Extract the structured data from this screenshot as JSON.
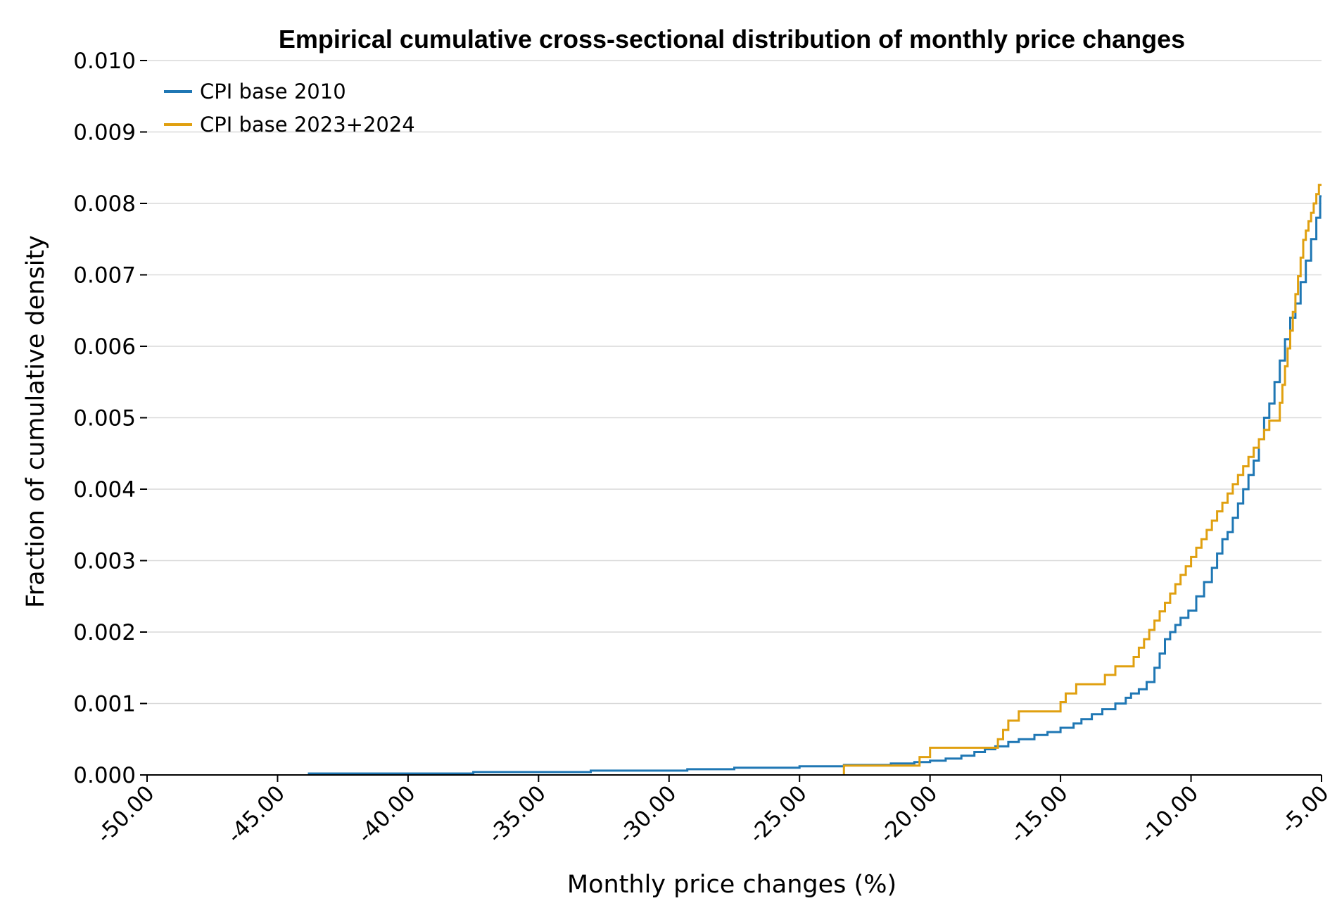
{
  "chart_data": {
    "type": "line",
    "step": true,
    "title": "Empirical cumulative cross-sectional distribution of monthly price changes",
    "xlabel": "Monthly price changes (%)",
    "ylabel": "Fraction of cumulative density",
    "xlim": [
      -50,
      -5
    ],
    "ylim": [
      0,
      0.01
    ],
    "x_ticks": [
      -50,
      -45,
      -40,
      -35,
      -30,
      -25,
      -20,
      -15,
      -10,
      -5
    ],
    "x_tick_labels": [
      "-50.00",
      "-45.00",
      "-40.00",
      "-35.00",
      "-30.00",
      "-25.00",
      "-20.00",
      "-15.00",
      "-10.00",
      "-5.00"
    ],
    "y_ticks": [
      0,
      0.001,
      0.002,
      0.003,
      0.004,
      0.005,
      0.006,
      0.007,
      0.008,
      0.009,
      0.01
    ],
    "y_tick_labels": [
      "0.000",
      "0.001",
      "0.002",
      "0.003",
      "0.004",
      "0.005",
      "0.006",
      "0.007",
      "0.008",
      "0.009",
      "0.010"
    ],
    "grid": true,
    "legend_position": "top-left",
    "series": [
      {
        "name": "CPI base 2010",
        "color": "#1f77b4",
        "x": [
          -43.8,
          -37.5,
          -33.0,
          -29.3,
          -27.5,
          -25.0,
          -23.3,
          -21.5,
          -20.6,
          -20.0,
          -19.4,
          -18.8,
          -18.3,
          -17.9,
          -17.5,
          -17.0,
          -16.6,
          -16.0,
          -15.5,
          -15.0,
          -14.5,
          -14.2,
          -13.8,
          -13.4,
          -12.9,
          -12.5,
          -12.3,
          -12.0,
          -11.7,
          -11.4,
          -11.2,
          -11.0,
          -10.8,
          -10.6,
          -10.4,
          -10.1,
          -9.8,
          -9.5,
          -9.2,
          -9.0,
          -8.8,
          -8.6,
          -8.4,
          -8.2,
          -8.0,
          -7.8,
          -7.6,
          -7.4,
          -7.2,
          -7.0,
          -6.8,
          -6.6,
          -6.4,
          -6.2,
          -6.0,
          -5.8,
          -5.6,
          -5.4,
          -5.2,
          -5.05
        ],
        "y": [
          2e-05,
          4e-05,
          6e-05,
          8e-05,
          0.0001,
          0.00012,
          0.00014,
          0.00016,
          0.00018,
          0.0002,
          0.00023,
          0.00027,
          0.00032,
          0.00036,
          0.0004,
          0.00046,
          0.0005,
          0.00056,
          0.0006,
          0.00066,
          0.00072,
          0.00078,
          0.00085,
          0.00092,
          0.001,
          0.00108,
          0.00114,
          0.0012,
          0.0013,
          0.0015,
          0.0017,
          0.0019,
          0.002,
          0.0021,
          0.0022,
          0.0023,
          0.0025,
          0.0027,
          0.0029,
          0.0031,
          0.0033,
          0.0034,
          0.0036,
          0.0038,
          0.004,
          0.0042,
          0.0044,
          0.0047,
          0.005,
          0.0052,
          0.0055,
          0.0058,
          0.0061,
          0.0064,
          0.0066,
          0.0069,
          0.0072,
          0.0075,
          0.0078,
          0.0081
        ]
      },
      {
        "name": "CPI base 2023+2024",
        "color": "#e0a010",
        "x": [
          -23.3,
          -20.4,
          -20.0,
          -17.4,
          -17.2,
          -17.0,
          -16.6,
          -15.0,
          -14.8,
          -14.4,
          -13.3,
          -12.9,
          -12.2,
          -12.0,
          -11.8,
          -11.6,
          -11.4,
          -11.2,
          -11.0,
          -10.8,
          -10.6,
          -10.4,
          -10.2,
          -10.0,
          -9.8,
          -9.6,
          -9.4,
          -9.2,
          -9.0,
          -8.8,
          -8.6,
          -8.4,
          -8.2,
          -8.0,
          -7.8,
          -7.6,
          -7.4,
          -7.2,
          -7.0,
          -6.6,
          -6.5,
          -6.4,
          -6.3,
          -6.2,
          -6.1,
          -6.0,
          -5.9,
          -5.8,
          -5.7,
          -5.6,
          -5.5,
          -5.4,
          -5.3,
          -5.2,
          -5.1
        ],
        "y": [
          0.00013,
          0.00025,
          0.00038,
          0.0005,
          0.00063,
          0.00076,
          0.00089,
          0.00102,
          0.00114,
          0.00127,
          0.0014,
          0.00152,
          0.00165,
          0.00178,
          0.0019,
          0.00203,
          0.00216,
          0.00229,
          0.00241,
          0.00254,
          0.00267,
          0.0028,
          0.00292,
          0.00305,
          0.00318,
          0.0033,
          0.00343,
          0.00356,
          0.00369,
          0.00381,
          0.00394,
          0.00407,
          0.0042,
          0.00432,
          0.00445,
          0.00458,
          0.0047,
          0.00483,
          0.00496,
          0.00521,
          0.00546,
          0.00572,
          0.00597,
          0.00622,
          0.00648,
          0.00673,
          0.00698,
          0.00724,
          0.00749,
          0.00762,
          0.00775,
          0.00787,
          0.008,
          0.00813,
          0.00826
        ]
      }
    ]
  }
}
